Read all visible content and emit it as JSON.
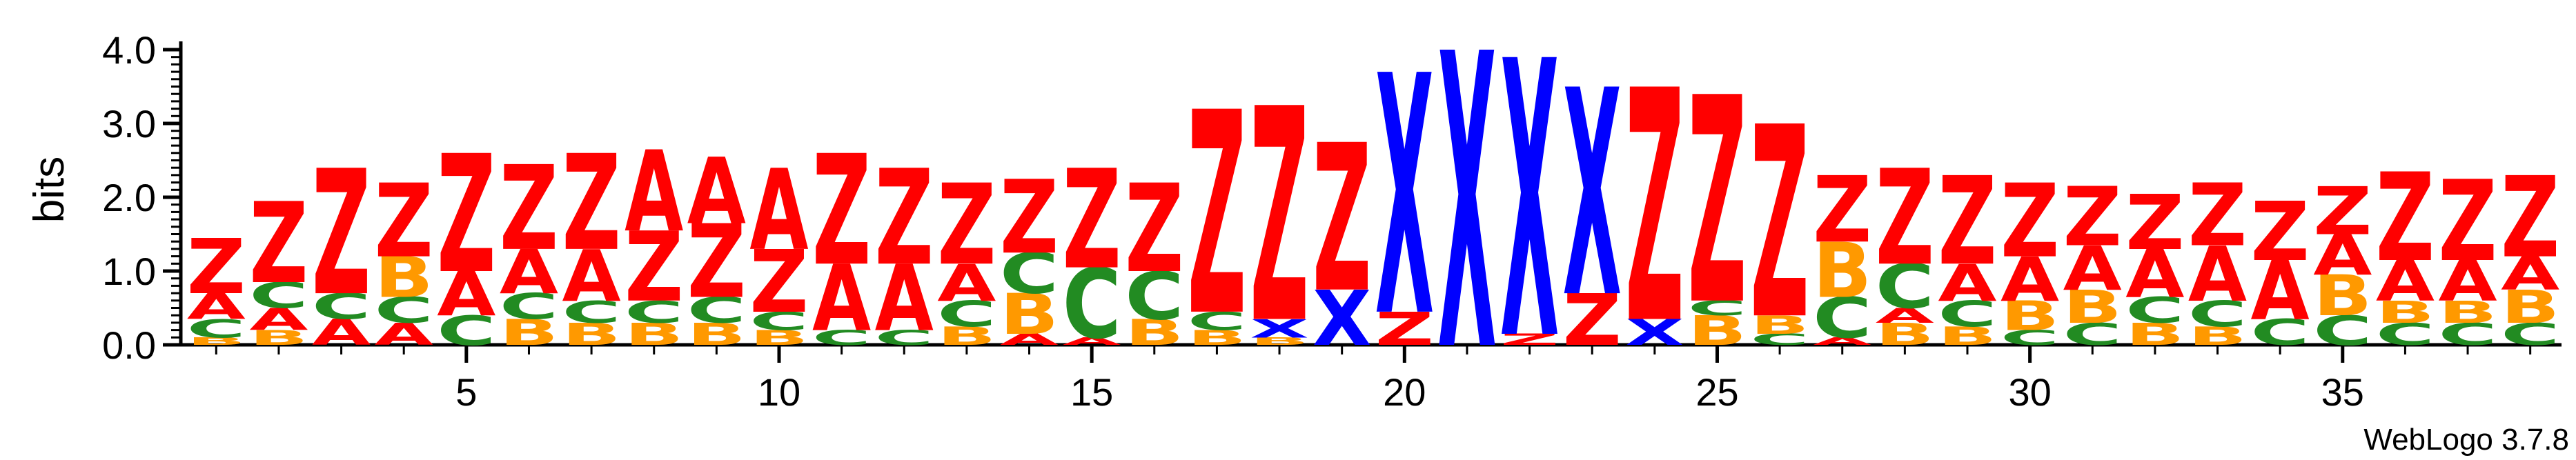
{
  "chart_data": {
    "type": "sequence-logo",
    "ylabel": "bits",
    "ylim": [
      0,
      4.0
    ],
    "yticks": [
      "0.0",
      "1.0",
      "2.0",
      "3.0",
      "4.0"
    ],
    "xticks": [
      5,
      10,
      15,
      20,
      25,
      30,
      35
    ],
    "positions": 38,
    "colors": {
      "Z": "#ff0000",
      "A": "#ff0000",
      "X": "#0000ff",
      "B": "#ff9900",
      "C": "#228b22"
    },
    "stacks": [
      [
        [
          "B",
          0.1
        ],
        [
          "C",
          0.25
        ],
        [
          "A",
          0.35
        ],
        [
          "Z",
          0.75
        ]
      ],
      [
        [
          "B",
          0.2
        ],
        [
          "A",
          0.3
        ],
        [
          "C",
          0.35
        ],
        [
          "Z",
          1.1
        ]
      ],
      [
        [
          "A",
          0.35
        ],
        [
          "C",
          0.35
        ],
        [
          "Z",
          1.7
        ]
      ],
      [
        [
          "A",
          0.3
        ],
        [
          "C",
          0.35
        ],
        [
          "B",
          0.55
        ],
        [
          "Z",
          1.0
        ]
      ],
      [
        [
          "C",
          0.4
        ],
        [
          "A",
          0.6
        ],
        [
          "Z",
          1.6
        ]
      ],
      [
        [
          "B",
          0.35
        ],
        [
          "C",
          0.35
        ],
        [
          "A",
          0.6
        ],
        [
          "Z",
          1.15
        ]
      ],
      [
        [
          "B",
          0.3
        ],
        [
          "C",
          0.3
        ],
        [
          "A",
          0.7
        ],
        [
          "Z",
          1.3
        ]
      ],
      [
        [
          "B",
          0.3
        ],
        [
          "C",
          0.3
        ],
        [
          "Z",
          0.95
        ],
        [
          "A",
          1.1
        ]
      ],
      [
        [
          "B",
          0.3
        ],
        [
          "C",
          0.35
        ],
        [
          "Z",
          1.0
        ],
        [
          "A",
          0.9
        ]
      ],
      [
        [
          "B",
          0.2
        ],
        [
          "C",
          0.25
        ],
        [
          "Z",
          0.85
        ],
        [
          "A",
          1.1
        ]
      ],
      [
        [
          "C",
          0.2
        ],
        [
          "A",
          0.9
        ],
        [
          "Z",
          1.5
        ]
      ],
      [
        [
          "C",
          0.2
        ],
        [
          "A",
          0.9
        ],
        [
          "Z",
          1.3
        ]
      ],
      [
        [
          "B",
          0.25
        ],
        [
          "C",
          0.35
        ],
        [
          "A",
          0.5
        ],
        [
          "Z",
          1.1
        ]
      ],
      [
        [
          "A",
          0.15
        ],
        [
          "B",
          0.55
        ],
        [
          "C",
          0.55
        ],
        [
          "Z",
          1.0
        ]
      ],
      [
        [
          "A",
          0.1
        ],
        [
          "C",
          0.95
        ],
        [
          "Z",
          1.35
        ]
      ],
      [
        [
          "B",
          0.35
        ],
        [
          "C",
          0.65
        ],
        [
          "Z",
          1.2
        ]
      ],
      [
        [
          "B",
          0.2
        ],
        [
          "C",
          0.25
        ],
        [
          "Z",
          2.75
        ]
      ],
      [
        [
          "B",
          0.1
        ],
        [
          "X",
          0.25
        ],
        [
          "Z",
          2.9
        ]
      ],
      [
        [
          "X",
          0.75
        ],
        [
          "Z",
          2.0
        ]
      ],
      [
        [
          "Z",
          0.45
        ],
        [
          "X",
          3.25
        ]
      ],
      [
        [
          "X",
          4.0
        ]
      ],
      [
        [
          "Z",
          0.15
        ],
        [
          "X",
          3.75
        ]
      ],
      [
        [
          "Z",
          0.7
        ],
        [
          "X",
          2.8
        ]
      ],
      [
        [
          "X",
          0.35
        ],
        [
          "Z",
          3.15
        ]
      ],
      [
        [
          "B",
          0.4
        ],
        [
          "C",
          0.2
        ],
        [
          "Z",
          2.8
        ]
      ],
      [
        [
          "C",
          0.15
        ],
        [
          "B",
          0.25
        ],
        [
          "Z",
          2.6
        ]
      ],
      [
        [
          "A",
          0.1
        ],
        [
          "C",
          0.55
        ],
        [
          "B",
          0.75
        ],
        [
          "Z",
          0.9
        ]
      ],
      [
        [
          "B",
          0.3
        ],
        [
          "A",
          0.2
        ],
        [
          "C",
          0.6
        ],
        [
          "Z",
          1.3
        ]
      ],
      [
        [
          "B",
          0.25
        ],
        [
          "C",
          0.35
        ],
        [
          "A",
          0.5
        ],
        [
          "Z",
          1.2
        ]
      ],
      [
        [
          "C",
          0.2
        ],
        [
          "B",
          0.4
        ],
        [
          "A",
          0.6
        ],
        [
          "Z",
          1.0
        ]
      ],
      [
        [
          "C",
          0.3
        ],
        [
          "B",
          0.45
        ],
        [
          "A",
          0.6
        ],
        [
          "Z",
          0.8
        ]
      ],
      [
        [
          "B",
          0.3
        ],
        [
          "C",
          0.35
        ],
        [
          "A",
          0.65
        ],
        [
          "Z",
          0.75
        ]
      ],
      [
        [
          "B",
          0.25
        ],
        [
          "C",
          0.35
        ],
        [
          "A",
          0.75
        ],
        [
          "Z",
          0.85
        ]
      ],
      [
        [
          "C",
          0.35
        ],
        [
          "A",
          0.8
        ],
        [
          "Z",
          0.8
        ]
      ],
      [
        [
          "C",
          0.4
        ],
        [
          "B",
          0.55
        ],
        [
          "A",
          0.55
        ],
        [
          "Z",
          0.65
        ]
      ],
      [
        [
          "C",
          0.3
        ],
        [
          "B",
          0.3
        ],
        [
          "A",
          0.55
        ],
        [
          "Z",
          1.2
        ]
      ],
      [
        [
          "C",
          0.3
        ],
        [
          "B",
          0.3
        ],
        [
          "A",
          0.55
        ],
        [
          "Z",
          1.1
        ]
      ],
      [
        [
          "C",
          0.3
        ],
        [
          "B",
          0.45
        ],
        [
          "A",
          0.45
        ],
        [
          "Z",
          1.1
        ]
      ]
    ]
  },
  "footer": {
    "credit": "WebLogo 3.7.8"
  }
}
